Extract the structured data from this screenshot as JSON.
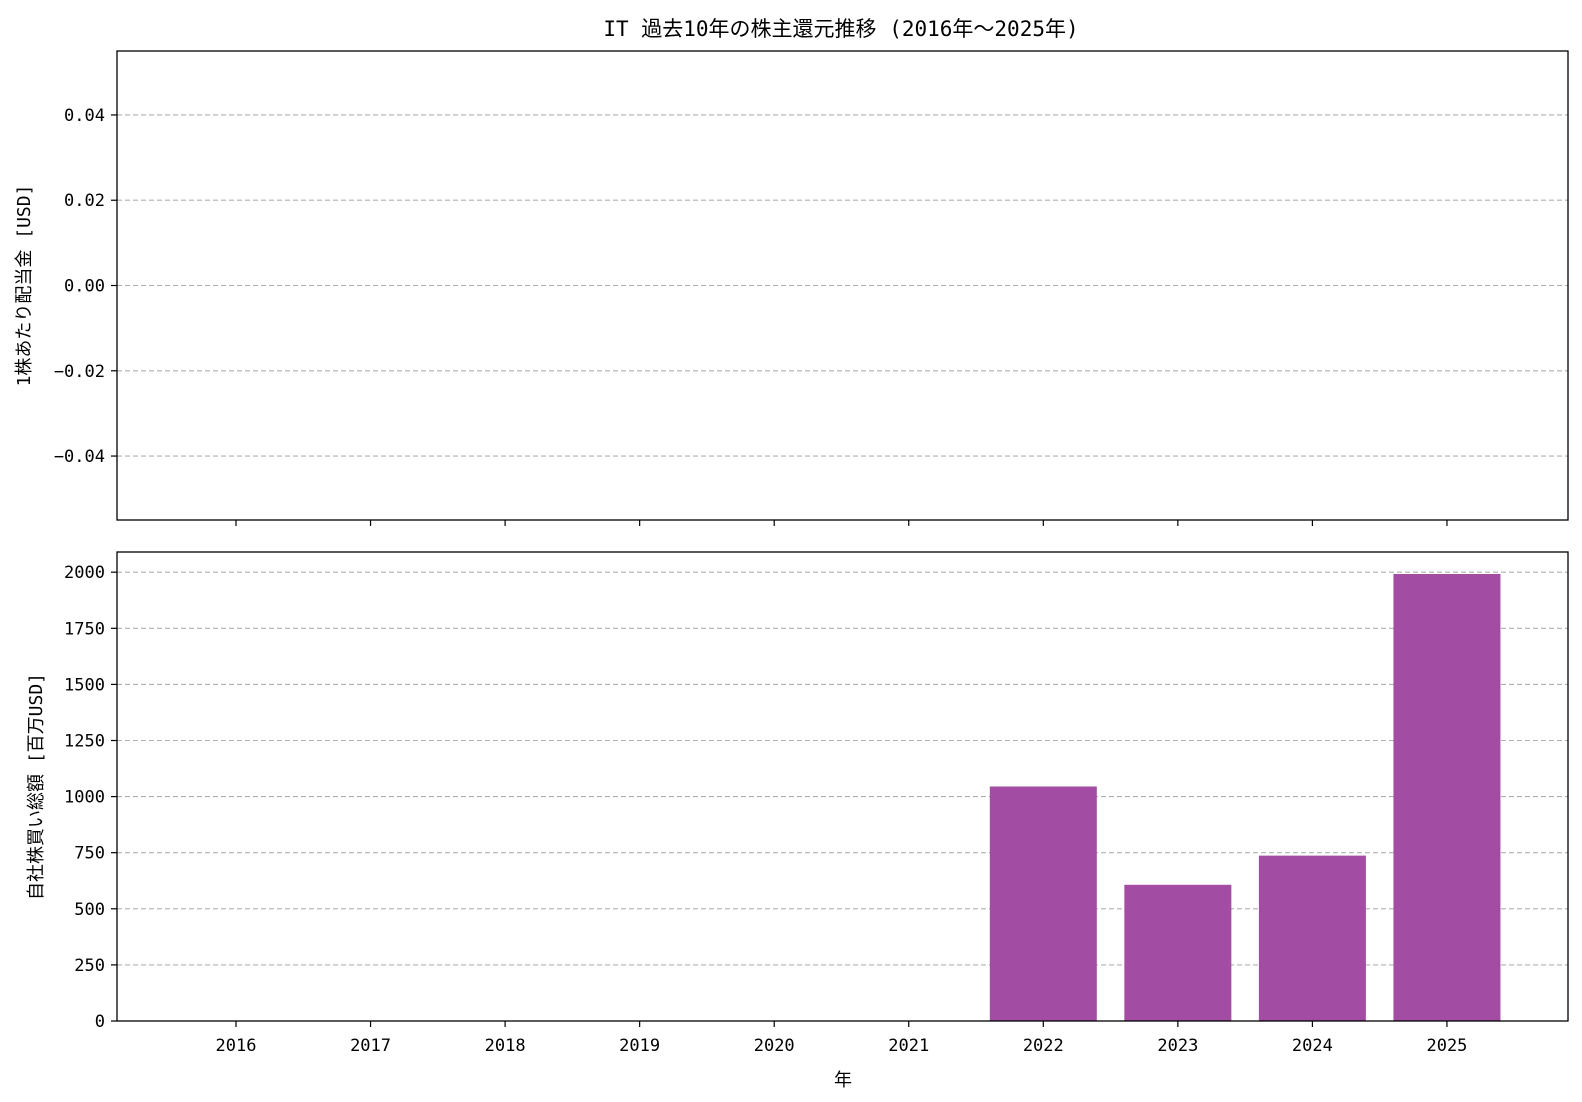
{
  "chart_data": {
    "title": "IT 過去10年の株主還元推移 (2016年～2025年)",
    "xlabel": "年",
    "categories": [
      "2016",
      "2017",
      "2018",
      "2019",
      "2020",
      "2021",
      "2022",
      "2023",
      "2024",
      "2025"
    ],
    "panels": [
      {
        "type": "bar",
        "ylabel": "1株あたり配当金 [USD]",
        "ylim": [
          -0.055,
          0.055
        ],
        "yticks": [
          -0.04,
          -0.02,
          0.0,
          0.02,
          0.04
        ],
        "ytick_labels": [
          "−0.04",
          "−0.02",
          "0.00",
          "0.02",
          "0.04"
        ],
        "values": [
          null,
          null,
          null,
          null,
          null,
          null,
          null,
          null,
          null,
          null
        ],
        "color": "#a34ca3",
        "grid": "y-dashed",
        "show_xtick_labels": false
      },
      {
        "type": "bar",
        "ylabel": "自社株買い総額 [百万USD]",
        "ylim": [
          0,
          2090
        ],
        "yticks": [
          0,
          250,
          500,
          750,
          1000,
          1250,
          1500,
          1750,
          2000
        ],
        "ytick_labels": [
          "0",
          "250",
          "500",
          "750",
          "1000",
          "1250",
          "1500",
          "1750",
          "2000"
        ],
        "values": [
          0,
          0,
          0,
          0,
          0,
          0,
          1045,
          607,
          737,
          1992
        ],
        "color": "#a34ca3",
        "grid": "y-dashed",
        "show_xtick_labels": true
      }
    ]
  }
}
